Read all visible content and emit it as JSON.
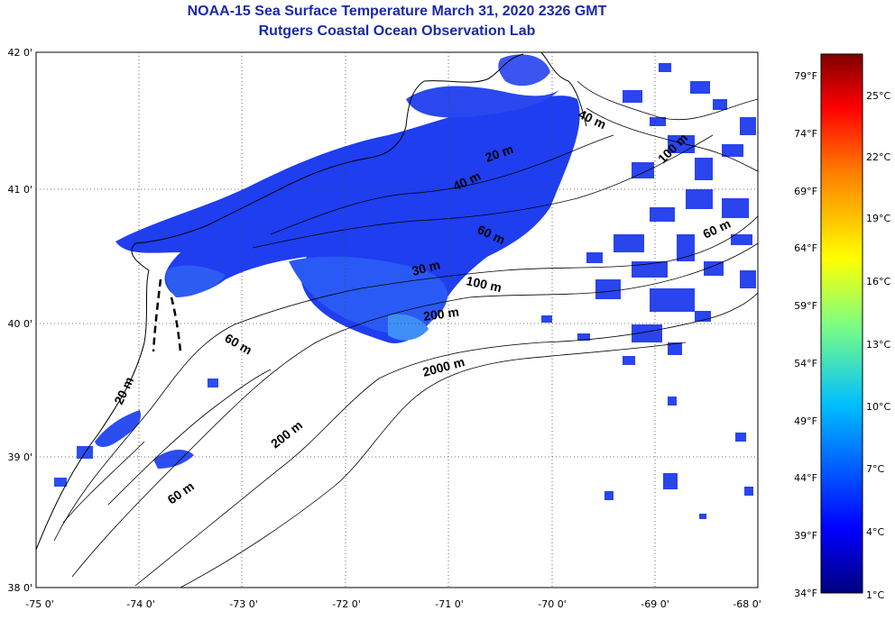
{
  "title": "NOAA-15 Sea Surface Temperature March 31, 2020 2326 GMT",
  "subtitle": "Rutgers Coastal Ocean Observation Lab",
  "map": {
    "lon_ticks": [
      "-75 0'",
      "-74 0'",
      "-73 0'",
      "-72 0'",
      "-71 0'",
      "-70 0'",
      "-69 0'",
      "-68 0'"
    ],
    "lat_ticks": [
      "42 0'",
      "41 0'",
      "40 0'",
      "39 0'",
      "38 0'"
    ],
    "lon_range": [
      -75,
      -68
    ],
    "lat_range": [
      38,
      42
    ],
    "grid": true,
    "depth_labels": [
      "20 m",
      "40 m",
      "60 m",
      "30 m",
      "100 m",
      "200 m",
      "2000 m",
      "60 m",
      "20 m",
      "200 m",
      "60 m",
      "40 m",
      "100 m",
      "60 m"
    ]
  },
  "colorbar": {
    "fahrenheit": [
      "79°F",
      "74°F",
      "69°F",
      "64°F",
      "59°F",
      "54°F",
      "49°F",
      "44°F",
      "39°F",
      "34°F"
    ],
    "celsius": [
      "25°C",
      "22°C",
      "19°C",
      "16°C",
      "13°C",
      "10°C",
      "7°C",
      "4°C",
      "1°C"
    ],
    "colors": [
      "#00007f",
      "#0000ff",
      "#007fff",
      "#00ffff",
      "#7fff7f",
      "#ffff00",
      "#ff7f00",
      "#ff0000",
      "#7f0000"
    ]
  }
}
